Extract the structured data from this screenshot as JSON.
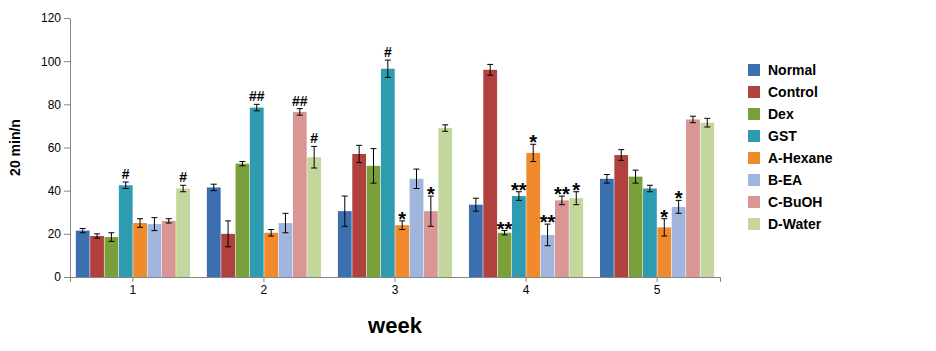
{
  "chart_data": {
    "type": "bar",
    "x_label": "week",
    "y_label": "20 min/n",
    "categories": [
      "1",
      "2",
      "3",
      "4",
      "5"
    ],
    "ylim": [
      0,
      120
    ],
    "yticks": [
      0,
      20,
      40,
      60,
      80,
      100,
      120
    ],
    "grid": false,
    "legend": "right",
    "series": [
      {
        "name": "Normal",
        "color": "#3c6fb0",
        "values": [
          21.5,
          41.5,
          30.5,
          33.5,
          45.5
        ],
        "errors": [
          1,
          1.5,
          7,
          3,
          2
        ],
        "significance": [
          null,
          null,
          null,
          null,
          null
        ]
      },
      {
        "name": "Control",
        "color": "#b0413e",
        "values": [
          19,
          20,
          57,
          96,
          56.5
        ],
        "errors": [
          1,
          6,
          4,
          2.5,
          2.5
        ],
        "significance": [
          null,
          null,
          null,
          null,
          null
        ]
      },
      {
        "name": "Dex",
        "color": "#7aa03c",
        "values": [
          18.5,
          52.5,
          51.5,
          20.5,
          46.5
        ],
        "errors": [
          2,
          1,
          8,
          1,
          3
        ],
        "significance": [
          null,
          null,
          null,
          "**",
          null
        ]
      },
      {
        "name": "GST",
        "color": "#2e9bb0",
        "values": [
          42.5,
          78.5,
          96.5,
          37.5,
          41
        ],
        "errors": [
          1.5,
          1.5,
          4,
          2,
          1.5
        ],
        "significance": [
          "#",
          "##",
          "#",
          "**",
          null
        ]
      },
      {
        "name": "A-Hexane",
        "color": "#f08a2c",
        "values": [
          25,
          20.5,
          24,
          57.5,
          23
        ],
        "errors": [
          2,
          1.5,
          2,
          4,
          4
        ],
        "significance": [
          null,
          null,
          "*",
          "*",
          "*"
        ]
      },
      {
        "name": "B-EA",
        "color": "#9fb5dc",
        "values": [
          24.5,
          25,
          45.5,
          19.5,
          32.5
        ],
        "errors": [
          3,
          4.5,
          4.5,
          5,
          3
        ],
        "significance": [
          null,
          null,
          null,
          "**",
          "*"
        ]
      },
      {
        "name": "C-BuOH",
        "color": "#d99694",
        "values": [
          26,
          76.5,
          30.5,
          35.5,
          73
        ],
        "errors": [
          1,
          1.5,
          7,
          2,
          1.5
        ],
        "significance": [
          null,
          "##",
          "*",
          "**",
          null
        ]
      },
      {
        "name": "D-Water",
        "color": "#c3d69b",
        "values": [
          41,
          55.5,
          69,
          36.5,
          71.5
        ],
        "errors": [
          1.5,
          5,
          1.5,
          3,
          2
        ],
        "significance": [
          "#",
          "#",
          null,
          "*",
          null
        ]
      }
    ]
  }
}
